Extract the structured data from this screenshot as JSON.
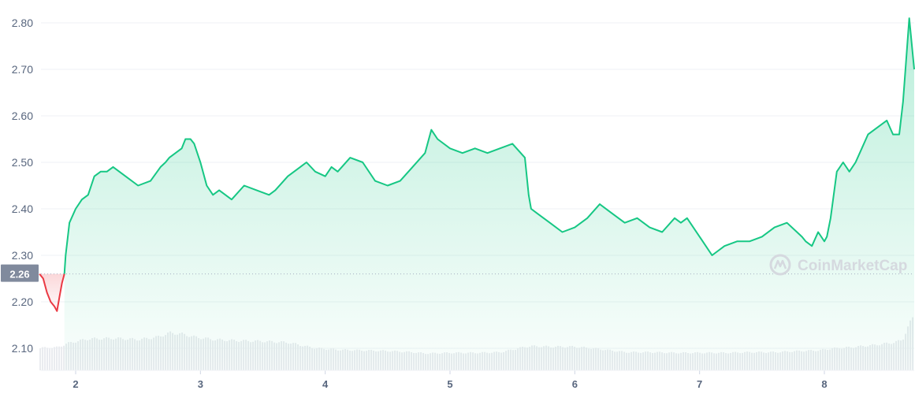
{
  "chart_data": {
    "type": "area",
    "x_ticks": [
      "2",
      "3",
      "4",
      "5",
      "6",
      "7",
      "8"
    ],
    "y_ticks": [
      "2.80",
      "2.70",
      "2.60",
      "2.50",
      "2.40",
      "2.30",
      "2.20",
      "2.10"
    ],
    "ylim": [
      2.05,
      2.83
    ],
    "xlim": [
      1.71,
      8.72
    ],
    "reference_value": "2.26",
    "watermark": "CoinMarketCap",
    "colors": {
      "up_line": "#16c784",
      "down_line": "#ea3943",
      "reference_label_bg": "#808a9d",
      "volume": "#e9ebef",
      "grid": "#eff2f5",
      "tick_text": "#58667e"
    },
    "price_series": {
      "x": [
        1.71,
        1.74,
        1.77,
        1.8,
        1.83,
        1.85,
        1.87,
        1.89,
        1.91,
        1.92,
        1.95,
        2.0,
        2.05,
        2.1,
        2.15,
        2.2,
        2.25,
        2.3,
        2.4,
        2.5,
        2.6,
        2.68,
        2.72,
        2.75,
        2.8,
        2.85,
        2.88,
        2.92,
        2.95,
        3.0,
        3.05,
        3.1,
        3.15,
        3.25,
        3.35,
        3.45,
        3.55,
        3.6,
        3.7,
        3.8,
        3.85,
        3.92,
        4.0,
        4.05,
        4.1,
        4.2,
        4.3,
        4.4,
        4.5,
        4.6,
        4.7,
        4.8,
        4.85,
        4.9,
        5.0,
        5.1,
        5.2,
        5.3,
        5.4,
        5.5,
        5.6,
        5.63,
        5.65,
        5.7,
        5.8,
        5.9,
        6.0,
        6.1,
        6.2,
        6.3,
        6.4,
        6.5,
        6.6,
        6.7,
        6.8,
        6.85,
        6.9,
        7.0,
        7.05,
        7.1,
        7.2,
        7.3,
        7.4,
        7.5,
        7.6,
        7.7,
        7.78,
        7.82,
        7.85,
        7.9,
        7.95,
        8.0,
        8.02,
        8.05,
        8.1,
        8.15,
        8.2,
        8.25,
        8.3,
        8.35,
        8.4,
        8.5,
        8.55,
        8.6,
        8.63,
        8.65,
        8.68,
        8.72
      ],
      "y": [
        2.26,
        2.25,
        2.22,
        2.2,
        2.19,
        2.18,
        2.21,
        2.24,
        2.26,
        2.3,
        2.37,
        2.4,
        2.42,
        2.43,
        2.47,
        2.48,
        2.48,
        2.49,
        2.47,
        2.45,
        2.46,
        2.49,
        2.5,
        2.51,
        2.52,
        2.53,
        2.55,
        2.55,
        2.54,
        2.5,
        2.45,
        2.43,
        2.44,
        2.42,
        2.45,
        2.44,
        2.43,
        2.44,
        2.47,
        2.49,
        2.5,
        2.48,
        2.47,
        2.49,
        2.48,
        2.51,
        2.5,
        2.46,
        2.45,
        2.46,
        2.49,
        2.52,
        2.57,
        2.55,
        2.53,
        2.52,
        2.53,
        2.52,
        2.53,
        2.54,
        2.51,
        2.43,
        2.4,
        2.39,
        2.37,
        2.35,
        2.36,
        2.38,
        2.41,
        2.39,
        2.37,
        2.38,
        2.36,
        2.35,
        2.38,
        2.37,
        2.38,
        2.34,
        2.32,
        2.3,
        2.32,
        2.33,
        2.33,
        2.34,
        2.36,
        2.37,
        2.35,
        2.34,
        2.33,
        2.32,
        2.35,
        2.33,
        2.34,
        2.38,
        2.48,
        2.5,
        2.48,
        2.5,
        2.53,
        2.56,
        2.57,
        2.59,
        2.56,
        2.56,
        2.63,
        2.7,
        2.81,
        2.7
      ]
    },
    "volume_series": {
      "x": [
        1.71,
        1.85,
        1.92,
        2.0,
        2.1,
        2.3,
        2.5,
        2.65,
        2.75,
        2.85,
        2.95,
        3.1,
        3.3,
        3.5,
        3.7,
        3.9,
        4.1,
        4.3,
        4.5,
        4.7,
        4.8,
        5.0,
        5.2,
        5.4,
        5.6,
        5.65,
        5.8,
        6.0,
        6.2,
        6.4,
        6.6,
        6.8,
        7.0,
        7.2,
        7.4,
        7.6,
        7.8,
        7.95,
        8.05,
        8.2,
        8.4,
        8.55,
        8.62,
        8.66,
        8.7,
        8.72
      ],
      "volume_pct": [
        0.37,
        0.38,
        0.44,
        0.48,
        0.52,
        0.53,
        0.51,
        0.55,
        0.62,
        0.6,
        0.55,
        0.51,
        0.49,
        0.48,
        0.46,
        0.37,
        0.34,
        0.33,
        0.32,
        0.3,
        0.28,
        0.29,
        0.29,
        0.3,
        0.39,
        0.4,
        0.39,
        0.39,
        0.35,
        0.3,
        0.3,
        0.29,
        0.29,
        0.29,
        0.3,
        0.3,
        0.32,
        0.33,
        0.36,
        0.38,
        0.42,
        0.46,
        0.5,
        0.7,
        0.86,
        0.9
      ]
    }
  }
}
